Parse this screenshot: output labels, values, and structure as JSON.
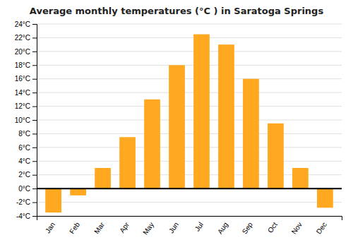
{
  "chart_data": {
    "type": "bar",
    "title": "Average monthly temperatures (°C ) in Saratoga Springs",
    "categories": [
      "Jan",
      "Feb",
      "Mar",
      "Apr",
      "May",
      "Jun",
      "Jul",
      "Aug",
      "Sep",
      "Oct",
      "Nov",
      "Dec"
    ],
    "values": [
      -3.5,
      -1.0,
      3.0,
      7.5,
      13.0,
      18.0,
      22.5,
      21.0,
      16.0,
      9.5,
      3.0,
      -2.8
    ],
    "color": "#FFA820",
    "ylim": [
      -4,
      24
    ],
    "yticks": [
      {
        "value": -4,
        "label": "-4°C"
      },
      {
        "value": -2,
        "label": "-2°C"
      },
      {
        "value": 0,
        "label": "0°C"
      },
      {
        "value": 2,
        "label": "2°C"
      },
      {
        "value": 4,
        "label": "4°C"
      },
      {
        "value": 6,
        "label": "6°C"
      },
      {
        "value": 8,
        "label": "8°C"
      },
      {
        "value": 10,
        "label": "10°C"
      },
      {
        "value": 12,
        "label": "12°C"
      },
      {
        "value": 14,
        "label": "14°C"
      },
      {
        "value": 16,
        "label": "16°C"
      },
      {
        "value": 18,
        "label": "18°C"
      },
      {
        "value": 20,
        "label": "20°C"
      },
      {
        "value": 22,
        "label": "22°C"
      },
      {
        "value": 24,
        "label": "24°C"
      }
    ],
    "grid": true
  }
}
